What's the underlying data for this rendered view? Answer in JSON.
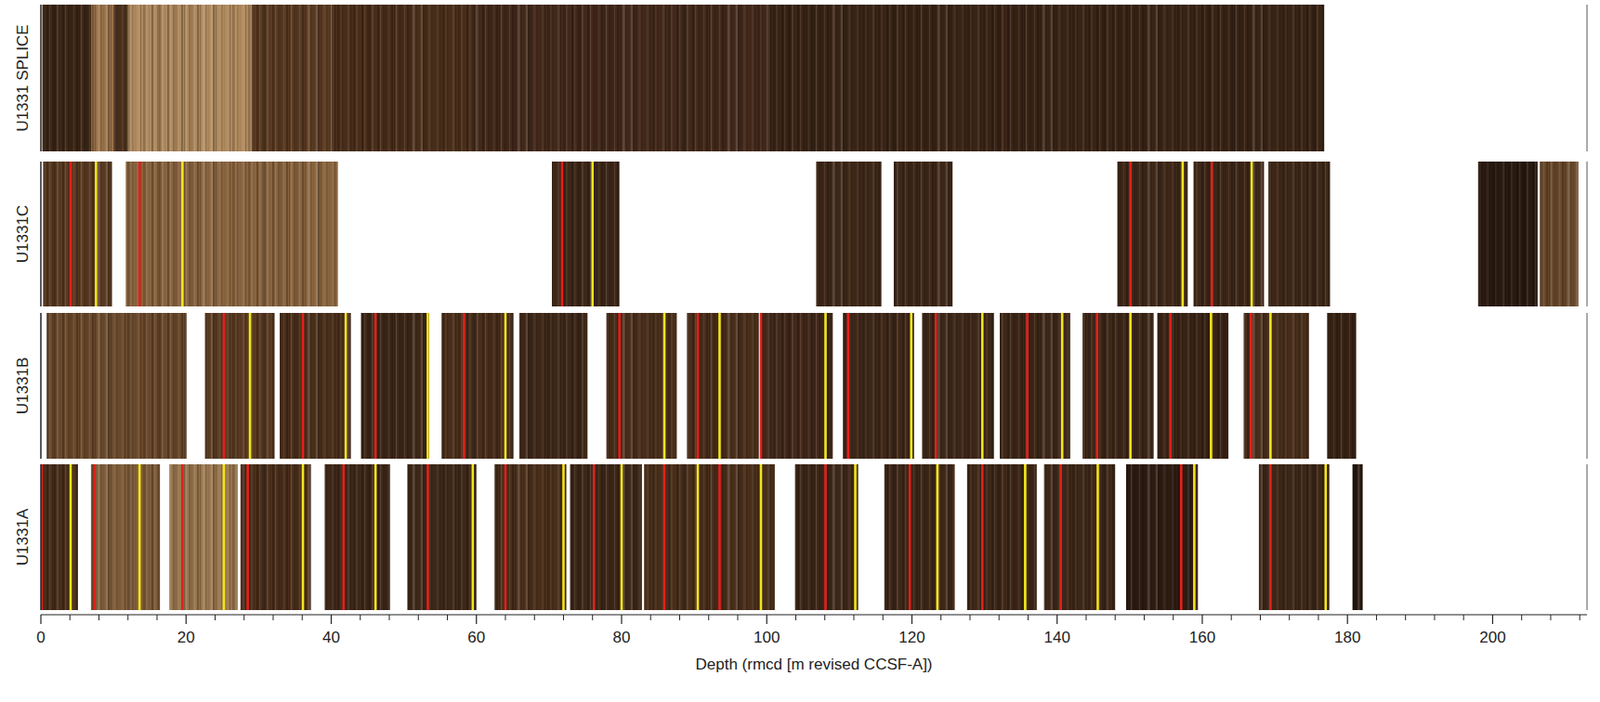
{
  "chart_data": {
    "type": "core_images",
    "x_label": "Depth (rmcd [m revised CCSF-A])",
    "xlim": [
      0,
      213
    ],
    "xticks": [
      0,
      20,
      40,
      60,
      80,
      100,
      120,
      140,
      160,
      180,
      200
    ],
    "xticks_minor": [
      4,
      8,
      12,
      16,
      24,
      28,
      32,
      36,
      44,
      48,
      52,
      56,
      64,
      68,
      72,
      76,
      84,
      88,
      92,
      96,
      104,
      108,
      112,
      116,
      124,
      128,
      132,
      136,
      144,
      148,
      152,
      156,
      164,
      168,
      172,
      176,
      184,
      188,
      192,
      196,
      204,
      208,
      212
    ],
    "series": [
      {
        "name": "U1331 SPLICE",
        "segments": [
          {
            "start": 0.2,
            "end": 7,
            "color": "#3d2716"
          },
          {
            "start": 7,
            "end": 10,
            "color": "#9a7149"
          },
          {
            "start": 10,
            "end": 12,
            "color": "#4a301c"
          },
          {
            "start": 12,
            "end": 29,
            "color": "#b08a5e"
          },
          {
            "start": 29,
            "end": 40,
            "color": "#5a3a22"
          },
          {
            "start": 40,
            "end": 60,
            "color": "#4a2e1a"
          },
          {
            "start": 60,
            "end": 100,
            "color": "#43291a"
          },
          {
            "start": 100,
            "end": 176.8,
            "color": "#3a2415"
          }
        ],
        "tie_points": []
      },
      {
        "name": "U1331C",
        "segments": [
          {
            "start": 0.3,
            "end": 9.8,
            "color": "#5a3b22"
          },
          {
            "start": 11.7,
            "end": 40.9,
            "color": "#8a6540"
          },
          {
            "start": 70.4,
            "end": 79.7,
            "color": "#3f2818"
          },
          {
            "start": 106.8,
            "end": 115.8,
            "color": "#3f2818"
          },
          {
            "start": 117.5,
            "end": 125.6,
            "color": "#3f2818"
          },
          {
            "start": 148.3,
            "end": 158.0,
            "color": "#3f2818"
          },
          {
            "start": 158.8,
            "end": 168.5,
            "color": "#3f2818"
          },
          {
            "start": 169.1,
            "end": 177.6,
            "color": "#3f2818"
          },
          {
            "start": 198.0,
            "end": 206.2,
            "color": "#2a1a10"
          },
          {
            "start": 206.5,
            "end": 211.8,
            "color": "#6a4a2c"
          }
        ],
        "tie_points": [
          {
            "color": "#e3201b",
            "values": [
              4.1,
              13.6,
              71.8,
              150.1,
              161.3
            ]
          },
          {
            "color": "#f2e51d",
            "values": [
              7.6,
              19.5,
              76.0,
              157.3,
              166.8
            ]
          }
        ]
      },
      {
        "name": "U1331B",
        "segments": [
          {
            "start": 0.8,
            "end": 20.1,
            "color": "#6b4a2c"
          },
          {
            "start": 22.6,
            "end": 32.2,
            "color": "#5a3b22"
          },
          {
            "start": 32.9,
            "end": 42.7,
            "color": "#4a2f1b"
          },
          {
            "start": 44.1,
            "end": 53.5,
            "color": "#3f2818"
          },
          {
            "start": 55.2,
            "end": 65.1,
            "color": "#4a2f1b"
          },
          {
            "start": 65.9,
            "end": 75.3,
            "color": "#3f2818"
          },
          {
            "start": 77.9,
            "end": 87.6,
            "color": "#4a2f1b"
          },
          {
            "start": 89.0,
            "end": 98.9,
            "color": "#4a2f1b"
          },
          {
            "start": 99.1,
            "end": 109.1,
            "color": "#43291a"
          },
          {
            "start": 110.5,
            "end": 120.3,
            "color": "#3f2818"
          },
          {
            "start": 121.4,
            "end": 131.3,
            "color": "#3f2818"
          },
          {
            "start": 132.1,
            "end": 141.8,
            "color": "#3f2818"
          },
          {
            "start": 143.5,
            "end": 153.3,
            "color": "#3f2818"
          },
          {
            "start": 153.8,
            "end": 163.6,
            "color": "#3a2415"
          },
          {
            "start": 165.7,
            "end": 174.7,
            "color": "#4a2f1b"
          },
          {
            "start": 177.2,
            "end": 181.2,
            "color": "#3a2415"
          }
        ],
        "tie_points": [
          {
            "color": "#e3201b",
            "values": [
              25.2,
              36.1,
              46.1,
              58.3,
              79.7,
              90.5,
              99.2,
              111.2,
              123.3,
              135.9,
              145.5,
              155.6,
              166.7
            ]
          },
          {
            "color": "#f2e51d",
            "values": [
              28.8,
              42.0,
              53.3,
              64.0,
              85.9,
              93.5,
              108.1,
              119.9,
              129.7,
              140.7,
              150.1,
              161.2,
              169.4
            ]
          }
        ]
      },
      {
        "name": "U1331A",
        "segments": [
          {
            "start": 0,
            "end": 5.1,
            "color": "#4a2f1b"
          },
          {
            "start": 6.9,
            "end": 16.4,
            "color": "#7f5d3a"
          },
          {
            "start": 17.7,
            "end": 27.1,
            "color": "#9a774f"
          },
          {
            "start": 27.5,
            "end": 37.2,
            "color": "#4a2f1b"
          },
          {
            "start": 39.1,
            "end": 48.1,
            "color": "#3f2818"
          },
          {
            "start": 50.5,
            "end": 60.0,
            "color": "#3f2818"
          },
          {
            "start": 62.5,
            "end": 72.4,
            "color": "#4a2f1b"
          },
          {
            "start": 72.9,
            "end": 82.8,
            "color": "#3f2818"
          },
          {
            "start": 83.1,
            "end": 101.1,
            "color": "#4a2f1b"
          },
          {
            "start": 103.9,
            "end": 112.6,
            "color": "#3f2818"
          },
          {
            "start": 116.2,
            "end": 125.9,
            "color": "#3f2818"
          },
          {
            "start": 127.6,
            "end": 137.2,
            "color": "#3f2818"
          },
          {
            "start": 138.2,
            "end": 148.0,
            "color": "#3f2818"
          },
          {
            "start": 149.5,
            "end": 159.4,
            "color": "#2e1c12"
          },
          {
            "start": 167.8,
            "end": 177.5,
            "color": "#3f2818"
          },
          {
            "start": 180.7,
            "end": 182.1,
            "color": "#24160d"
          }
        ],
        "tie_points": [
          {
            "color": "#e3201b",
            "values": [
              0.1,
              7.4,
              19.5,
              28.5,
              41.7,
              53.3,
              64.0,
              76.2,
              85.9,
              93.5,
              108.1,
              119.7,
              129.7,
              140.5,
              157.1,
              169.4
            ]
          },
          {
            "color": "#f2e51d",
            "values": [
              4.1,
              13.6,
              25.2,
              36.1,
              46.1,
              59.5,
              72.0,
              80.0,
              90.5,
              99.2,
              112.2,
              123.5,
              135.6,
              145.6,
              158.9,
              177.0
            ]
          }
        ]
      }
    ]
  }
}
